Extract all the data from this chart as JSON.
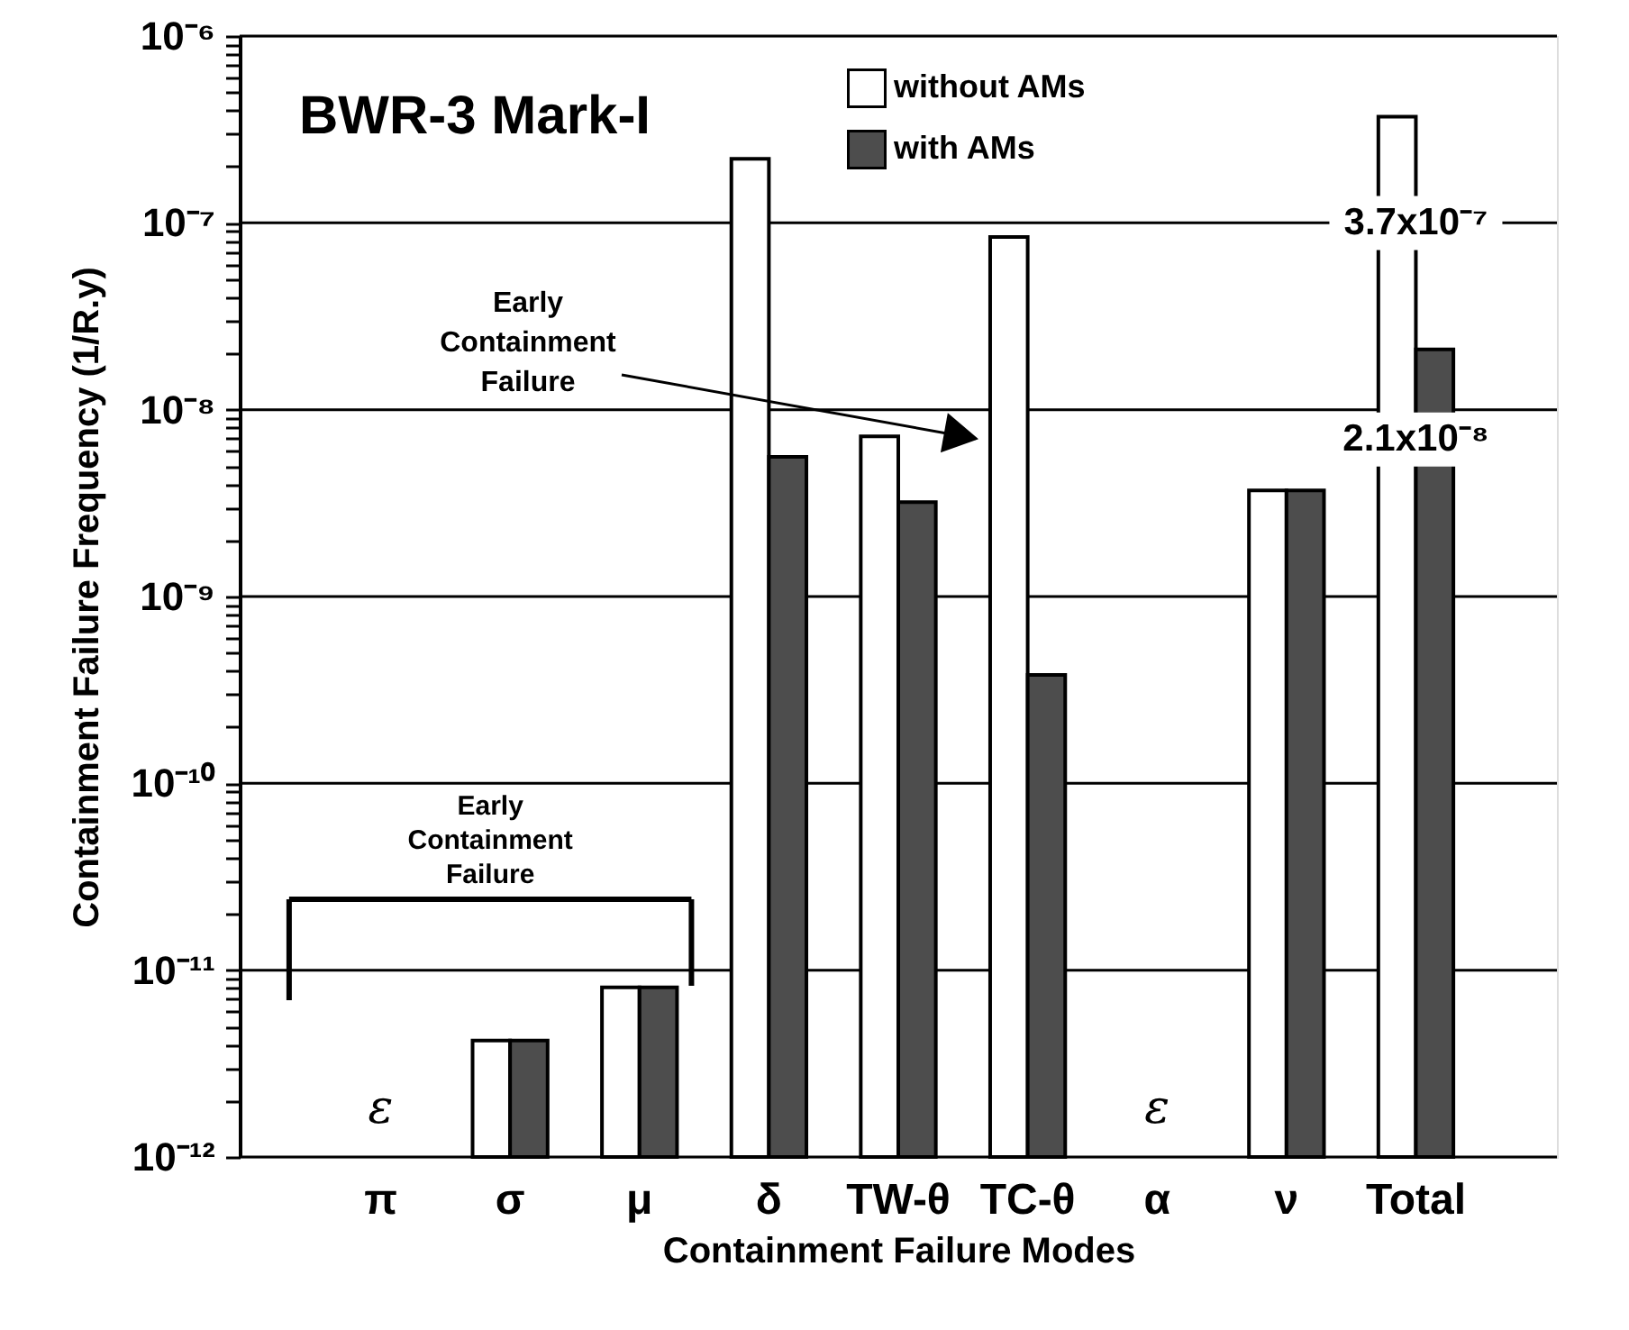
{
  "chart_data": {
    "type": "bar",
    "title": "BWR-3 Mark-I",
    "xlabel": "Containment Failure Modes",
    "ylabel": "Containment Failure Frequency (1/R.y)",
    "categories": [
      "π",
      "σ",
      "μ",
      "δ",
      "TW-θ",
      "TC-θ",
      "α",
      "ν",
      "Total"
    ],
    "series": [
      {
        "name": "without AMs",
        "color": "#ffffff",
        "values": [
          null,
          4.2e-12,
          8.1e-12,
          2.2e-07,
          7.2e-09,
          8.4e-08,
          null,
          3.7e-09,
          3.7e-07
        ],
        "value_labels": [
          null,
          null,
          null,
          null,
          null,
          null,
          null,
          null,
          "3.7x10⁻⁷"
        ]
      },
      {
        "name": "with AMs",
        "color": "#4d4d4d",
        "values": [
          null,
          4.2e-12,
          8.1e-12,
          5.6e-09,
          3.2e-09,
          3.8e-10,
          null,
          3.7e-09,
          2.1e-08
        ],
        "value_labels": [
          null,
          null,
          null,
          null,
          null,
          null,
          null,
          null,
          "2.1x10⁻⁸"
        ]
      }
    ],
    "log": true,
    "ylim": [
      1e-12,
      1e-06
    ],
    "yticks": [
      {
        "value": 1e-12,
        "label": "10⁻¹²"
      },
      {
        "value": 2e-12,
        "label": null
      },
      {
        "value": 3e-12,
        "label": null
      },
      {
        "value": 4e-12,
        "label": null
      },
      {
        "value": 5e-12,
        "label": null
      },
      {
        "value": 6e-12,
        "label": null
      },
      {
        "value": 7e-12,
        "label": null
      },
      {
        "value": 8e-12,
        "label": null
      },
      {
        "value": 9e-12,
        "label": null
      },
      {
        "value": 1e-11,
        "label": "10⁻¹¹"
      },
      {
        "value": 2e-11,
        "label": null
      },
      {
        "value": 3e-11,
        "label": null
      },
      {
        "value": 4e-11,
        "label": null
      },
      {
        "value": 5e-11,
        "label": null
      },
      {
        "value": 6e-11,
        "label": null
      },
      {
        "value": 7e-11,
        "label": null
      },
      {
        "value": 8e-11,
        "label": null
      },
      {
        "value": 9e-11,
        "label": null
      },
      {
        "value": 1e-10,
        "label": "10⁻¹⁰"
      },
      {
        "value": 2e-10,
        "label": null
      },
      {
        "value": 3e-10,
        "label": null
      },
      {
        "value": 4e-10,
        "label": null
      },
      {
        "value": 5e-10,
        "label": null
      },
      {
        "value": 6e-10,
        "label": null
      },
      {
        "value": 7e-10,
        "label": null
      },
      {
        "value": 8e-10,
        "label": null
      },
      {
        "value": 9e-10,
        "label": null
      },
      {
        "value": 1e-09,
        "label": "10⁻⁹"
      },
      {
        "value": 2e-09,
        "label": null
      },
      {
        "value": 3e-09,
        "label": null
      },
      {
        "value": 4e-09,
        "label": null
      },
      {
        "value": 5e-09,
        "label": null
      },
      {
        "value": 6e-09,
        "label": null
      },
      {
        "value": 7e-09,
        "label": null
      },
      {
        "value": 8e-09,
        "label": null
      },
      {
        "value": 9e-09,
        "label": null
      },
      {
        "value": 1e-08,
        "label": "10⁻⁸"
      },
      {
        "value": 2e-08,
        "label": null
      },
      {
        "value": 3e-08,
        "label": null
      },
      {
        "value": 4e-08,
        "label": null
      },
      {
        "value": 5e-08,
        "label": null
      },
      {
        "value": 6e-08,
        "label": null
      },
      {
        "value": 7e-08,
        "label": null
      },
      {
        "value": 8e-08,
        "label": null
      },
      {
        "value": 9e-08,
        "label": null
      },
      {
        "value": 1e-07,
        "label": "10⁻⁷"
      },
      {
        "value": 2e-07,
        "label": null
      },
      {
        "value": 3e-07,
        "label": null
      },
      {
        "value": 4e-07,
        "label": null
      },
      {
        "value": 5e-07,
        "label": null
      },
      {
        "value": 6e-07,
        "label": null
      },
      {
        "value": 7e-07,
        "label": null
      },
      {
        "value": 8e-07,
        "label": null
      },
      {
        "value": 9e-07,
        "label": null
      },
      {
        "value": 1e-06,
        "label": "10⁻⁶"
      }
    ],
    "grid": "y",
    "legend": "top",
    "annotations": [
      "Early Containment Failure",
      "Early Containment Failure",
      "ε",
      "ε"
    ]
  }
}
